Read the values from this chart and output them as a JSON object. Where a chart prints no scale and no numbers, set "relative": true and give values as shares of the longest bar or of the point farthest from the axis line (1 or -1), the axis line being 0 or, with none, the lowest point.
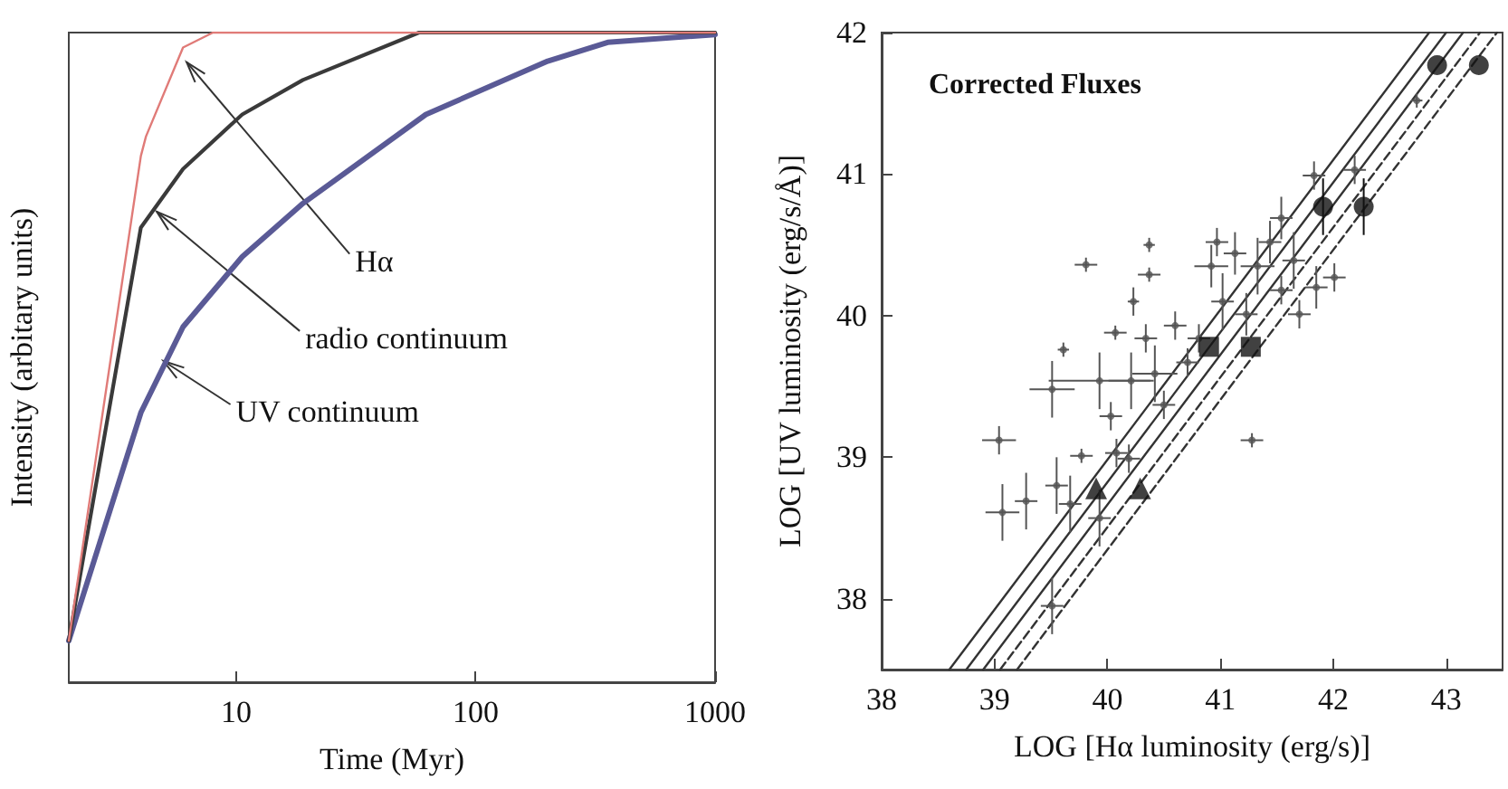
{
  "chart_data": [
    {
      "type": "line",
      "relative": true,
      "log": "x",
      "xlabel": "Time (Myr)",
      "ylabel": "Intensity (arbitary units)",
      "xlim": [
        2,
        1000
      ],
      "xticks": [
        10,
        100,
        1000
      ],
      "grid": false,
      "marker": "none",
      "series": [
        {
          "color": "#e07b78",
          "x": [
            2,
            4,
            4.2,
            6,
            8,
            1000
          ],
          "values": [
            0.064,
            0.81,
            0.84,
            0.977,
            1,
            1
          ]
        },
        {
          "color": "#3a3a3a",
          "x": [
            2,
            4,
            6,
            10.6,
            19,
            58,
            1000
          ],
          "values": [
            0.064,
            0.7,
            0.79,
            0.874,
            0.927,
            1,
            1
          ]
        },
        {
          "color": "#5a5a96",
          "x": [
            2,
            4,
            6,
            10.6,
            19,
            62,
            200,
            356,
            1000
          ],
          "values": [
            0.064,
            0.415,
            0.547,
            0.655,
            0.737,
            0.874,
            0.956,
            0.985,
            0.997
          ]
        }
      ],
      "annotations": [
        {
          "text": "Hα",
          "x": 6,
          "y": 0.96
        },
        {
          "text": "radio continuum",
          "x": 4.5,
          "y": 0.73
        },
        {
          "text": "UV continuum",
          "x": 4.8,
          "y": 0.5
        }
      ]
    },
    {
      "type": "scatter",
      "title": "Corrected Fluxes",
      "xlabel": "LOG [Hα luminosity (erg/s)]",
      "ylabel": "LOG [UV luminosity (erg/s/Å)]",
      "xlim": [
        38,
        43.5
      ],
      "ylim": [
        37.5,
        42
      ],
      "xticks": [
        38,
        39,
        40,
        41,
        42,
        43
      ],
      "yticks": [
        38,
        39,
        40,
        41,
        42
      ],
      "grid": false,
      "series": [
        {
          "type": "line",
          "color": "#333333",
          "line_style": "solid",
          "marker": "none",
          "x": [
            38.6,
            42.85
          ],
          "values": [
            37.5,
            42
          ]
        },
        {
          "type": "line",
          "color": "#333333",
          "line_style": "solid",
          "marker": "none",
          "x": [
            38.75,
            43.0
          ],
          "values": [
            37.5,
            42
          ]
        },
        {
          "type": "line",
          "color": "#333333",
          "line_style": "solid",
          "marker": "none",
          "x": [
            38.9,
            43.15
          ],
          "values": [
            37.5,
            42
          ]
        },
        {
          "type": "line",
          "color": "#333333",
          "line_style": "dashed",
          "marker": "none",
          "x": [
            39.05,
            43.3
          ],
          "values": [
            37.5,
            42
          ]
        },
        {
          "type": "line",
          "color": "#333333",
          "line_style": "dashed",
          "marker": "none",
          "x": [
            39.2,
            43.45
          ],
          "values": [
            37.5,
            42
          ]
        },
        {
          "color": "#555555",
          "marker": "circle",
          "x": [
            39.04,
            39.07,
            39.28,
            39.51,
            39.55,
            39.61,
            39.51,
            39.77,
            39.81,
            39.67,
            39.93,
            39.93,
            40.07,
            40.03,
            40.08,
            40.23,
            40.21,
            40.37,
            40.37,
            40.34,
            40.42,
            40.71,
            40.6,
            40.92,
            41.02,
            41.13,
            41.28,
            41.33,
            41.44,
            41.54,
            41.65,
            41.7,
            41.83,
            41.85,
            42.01,
            42.19,
            42.74,
            41.23,
            40.81,
            40.5,
            40.97,
            41.54,
            40.19
          ],
          "values": [
            39.12,
            38.61,
            38.69,
            39.48,
            38.8,
            39.76,
            37.95,
            39.01,
            40.36,
            38.67,
            38.57,
            39.54,
            39.88,
            39.29,
            39.03,
            40.1,
            39.54,
            40.5,
            40.29,
            39.84,
            39.59,
            39.67,
            39.93,
            40.35,
            40.1,
            40.44,
            39.12,
            40.35,
            40.52,
            40.18,
            40.39,
            40.01,
            40.99,
            40.2,
            40.27,
            41.03,
            41.52,
            40.01,
            39.84,
            39.37,
            40.52,
            40.69,
            38.99
          ],
          "xerrors": [
            0.15,
            0.15,
            0.1,
            0.2,
            0.1,
            0.05,
            0.1,
            0.1,
            0.1,
            0.1,
            0.1,
            0.45,
            0.1,
            0.1,
            0.1,
            0.05,
            0.2,
            0.05,
            0.1,
            0.1,
            0.2,
            0.1,
            0.1,
            0.15,
            0.1,
            0.1,
            0.1,
            0.15,
            0.1,
            0.1,
            0.1,
            0.1,
            0.1,
            0.1,
            0.1,
            0.1,
            0.05,
            0.1,
            0.1,
            0.1,
            0.1,
            0.1,
            0.1
          ],
          "errors": [
            0.1,
            0.2,
            0.2,
            0.2,
            0.2,
            0.05,
            0.2,
            0.05,
            0.05,
            0.2,
            0.2,
            0.2,
            0.05,
            0.1,
            0.1,
            0.1,
            0.2,
            0.05,
            0.05,
            0.1,
            0.2,
            0.1,
            0.1,
            0.15,
            0.2,
            0.15,
            0.05,
            0.2,
            0.15,
            0.1,
            0.2,
            0.1,
            0.1,
            0.15,
            0.1,
            0.1,
            0.05,
            0.15,
            0.1,
            0.1,
            0.1,
            0.15,
            0.1
          ]
        },
        {
          "color": "#111111",
          "marker": "circle",
          "x": [
            42.92,
            43.29,
            41.91,
            42.27
          ],
          "values": [
            41.77,
            41.77,
            40.77,
            40.77
          ],
          "errors": [
            null,
            null,
            0.2,
            0.2
          ]
        },
        {
          "color": "#111111",
          "marker": "square",
          "x": [
            40.9,
            41.27
          ],
          "values": [
            39.78,
            39.78
          ]
        },
        {
          "color": "#111111",
          "marker": "triangle",
          "x": [
            39.9,
            40.29
          ],
          "values": [
            38.78,
            38.78
          ]
        }
      ]
    }
  ]
}
